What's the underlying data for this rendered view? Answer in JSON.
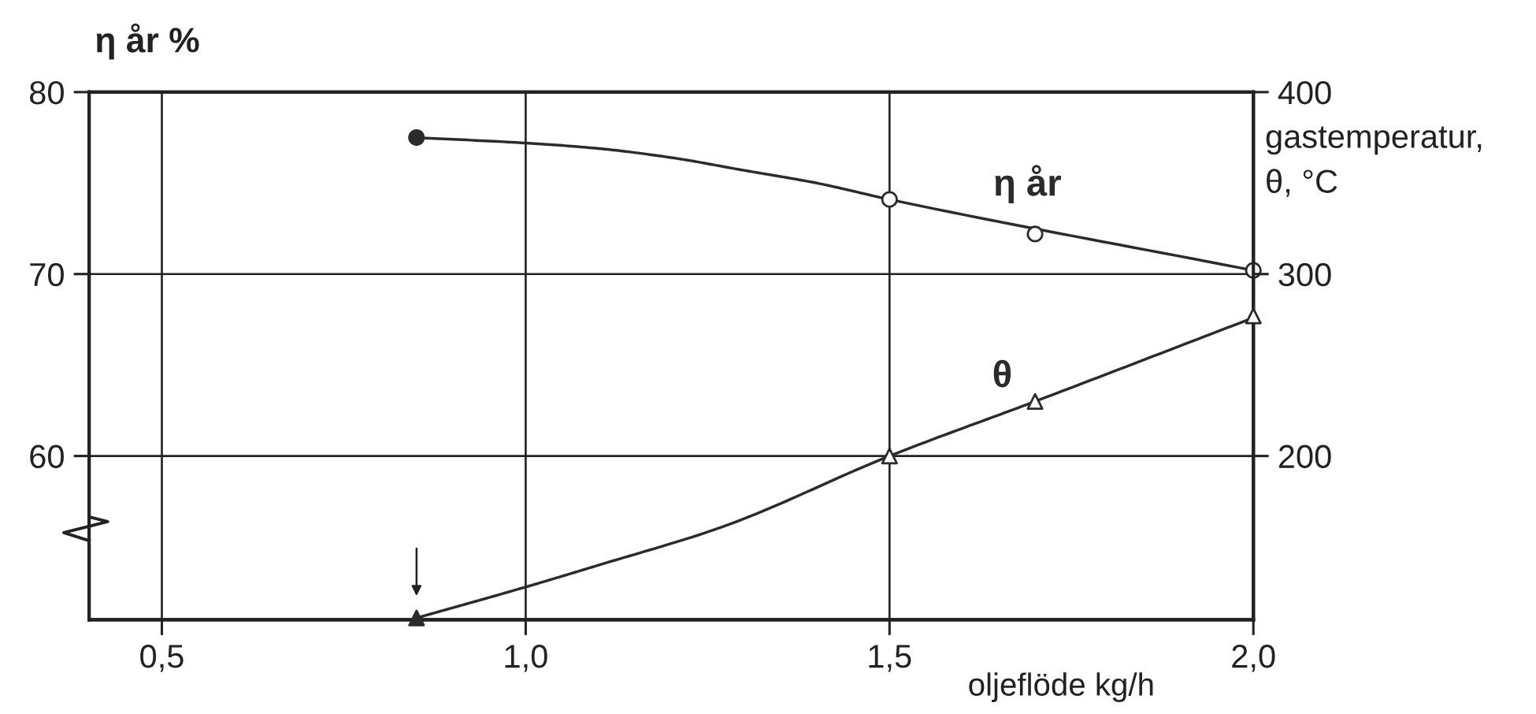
{
  "chart_data": {
    "type": "line",
    "xlabel": "oljeflöde kg/h",
    "ylabel": "η år %",
    "y2label": "gastemperatur,\nθ, °C",
    "xlim": [
      0.4,
      2.0
    ],
    "xticks": [
      {
        "value": 0.5,
        "label": "0,5"
      },
      {
        "value": 1.0,
        "label": "1,0"
      },
      {
        "value": 1.5,
        "label": "1,5"
      },
      {
        "value": 2.0,
        "label": "2,0"
      }
    ],
    "ylim": [
      51,
      80
    ],
    "yticks": [
      60,
      70,
      80
    ],
    "y2lim": [
      110,
      400
    ],
    "y2ticks": [
      200,
      300,
      400
    ],
    "grid": true,
    "series": [
      {
        "name": "η år",
        "color": "#2b2b2b",
        "line_style": "solid",
        "marker": "none",
        "x": [
          0.85,
          1.0,
          1.1,
          1.2,
          1.3,
          1.4,
          1.5,
          2.0
        ],
        "values": [
          77.5,
          77.2,
          76.9,
          76.4,
          75.7,
          75.0,
          74.1,
          70.2
        ]
      },
      {
        "type": "scatter",
        "color": "#2b2b2b",
        "marker": "circle",
        "x": [
          0.85,
          1.5,
          1.7,
          2.0
        ],
        "values": [
          77.5,
          74.1,
          72.2,
          70.2
        ],
        "colors": [
          "#2b2b2b",
          "#ffffff",
          "#ffffff",
          "#ffffff"
        ]
      },
      {
        "name": "θ",
        "axis": "y2",
        "color": "#2b2b2b",
        "line_style": "solid",
        "marker": "none",
        "x": [
          0.85,
          1.0,
          1.1,
          1.27,
          1.5,
          1.7,
          2.0
        ],
        "values": [
          111,
          128,
          140,
          161,
          200,
          230,
          276
        ]
      },
      {
        "type": "scatter",
        "axis": "y2",
        "color": "#2b2b2b",
        "marker": "triangle",
        "x": [
          0.85,
          1.5,
          1.7,
          2.0
        ],
        "values": [
          111,
          200,
          230,
          277
        ],
        "colors": [
          "#2b2b2b",
          "#ffffff",
          "#ffffff",
          "#ffffff"
        ]
      }
    ]
  }
}
